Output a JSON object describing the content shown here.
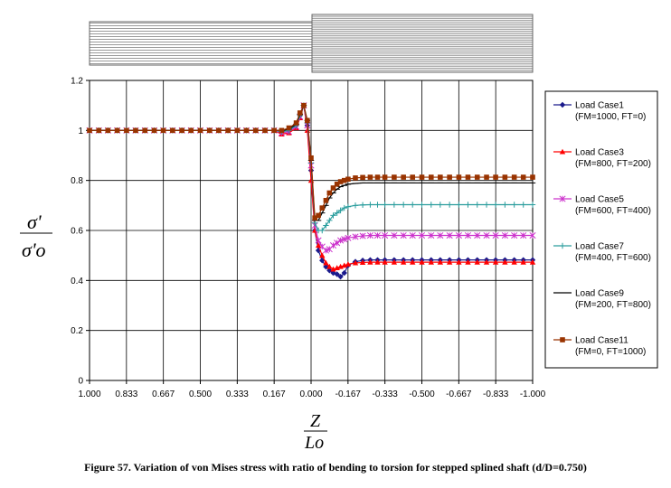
{
  "chart_data": {
    "type": "line",
    "caption": "Figure 57.    Variation of von Mises stress with ratio of bending to torsion for stepped splined shaft (d/D=0.750)",
    "ylabel": {
      "num": "σ'",
      "den": "σ'o"
    },
    "xlabel": {
      "num": "Z",
      "den": "Lo"
    },
    "ylim": [
      0,
      1.2
    ],
    "xlim": [
      1.0,
      -1.0
    ],
    "yticks": [
      "0",
      "0.2",
      "0.4",
      "0.6",
      "0.8",
      "1",
      "1.2"
    ],
    "xticks": [
      "1.000",
      "0.833",
      "0.667",
      "0.500",
      "0.333",
      "0.167",
      "0.000",
      "-0.167",
      "-0.333",
      "-0.500",
      "-0.667",
      "-0.833",
      "-1.000"
    ],
    "grid": true,
    "legend_position": "right",
    "x": [
      1.0,
      0.958,
      0.917,
      0.875,
      0.833,
      0.792,
      0.75,
      0.708,
      0.667,
      0.625,
      0.583,
      0.542,
      0.5,
      0.458,
      0.417,
      0.375,
      0.333,
      0.292,
      0.25,
      0.208,
      0.167,
      0.133,
      0.1,
      0.067,
      0.05,
      0.033,
      0.017,
      0.0,
      -0.017,
      -0.033,
      -0.05,
      -0.067,
      -0.083,
      -0.1,
      -0.117,
      -0.133,
      -0.15,
      -0.167,
      -0.2,
      -0.233,
      -0.267,
      -0.3,
      -0.333,
      -0.375,
      -0.417,
      -0.458,
      -0.5,
      -0.542,
      -0.583,
      -0.625,
      -0.667,
      -0.708,
      -0.75,
      -0.792,
      -0.833,
      -0.875,
      -0.917,
      -0.958,
      -1.0
    ],
    "series": [
      {
        "name": "Load Case1",
        "sub": "(FM=1000, FT=0)",
        "color": "#1a1a8c",
        "marker": "diamond",
        "values": [
          1,
          1,
          1,
          1,
          1,
          1,
          1,
          1,
          1,
          1,
          1,
          1,
          1,
          1,
          1,
          1,
          1,
          1,
          1,
          1,
          1,
          0.995,
          1.0,
          1.02,
          1.06,
          1.1,
          1.02,
          0.84,
          0.6,
          0.52,
          0.48,
          0.455,
          0.44,
          0.43,
          0.425,
          0.415,
          0.43,
          0.46,
          0.475,
          0.48,
          0.482,
          0.482,
          0.482,
          0.482,
          0.482,
          0.482,
          0.482,
          0.482,
          0.482,
          0.482,
          0.482,
          0.482,
          0.482,
          0.482,
          0.482,
          0.482,
          0.482,
          0.482,
          0.482
        ]
      },
      {
        "name": "Load Case3",
        "sub": "(FM=800, FT=200)",
        "color": "#ff0000",
        "marker": "triangle",
        "values": [
          1,
          1,
          1,
          1,
          1,
          1,
          1,
          1,
          1,
          1,
          1,
          1,
          1,
          1,
          1,
          1,
          1,
          1,
          1,
          1,
          1,
          0.985,
          0.99,
          1.01,
          1.05,
          1.1,
          1.0,
          0.8,
          0.6,
          0.54,
          0.5,
          0.47,
          0.455,
          0.445,
          0.45,
          0.455,
          0.46,
          0.465,
          0.47,
          0.472,
          0.473,
          0.473,
          0.473,
          0.473,
          0.473,
          0.473,
          0.473,
          0.473,
          0.473,
          0.473,
          0.473,
          0.473,
          0.473,
          0.473,
          0.473,
          0.473,
          0.473,
          0.473,
          0.473
        ]
      },
      {
        "name": "Load Case5",
        "sub": "(FM=600, FT=400)",
        "color": "#cc33cc",
        "marker": "star",
        "values": [
          1,
          1,
          1,
          1,
          1,
          1,
          1,
          1,
          1,
          1,
          1,
          1,
          1,
          1,
          1,
          1,
          1,
          1,
          1,
          1,
          1,
          0.99,
          0.995,
          1.015,
          1.055,
          1.1,
          1.02,
          0.86,
          0.62,
          0.56,
          0.535,
          0.52,
          0.525,
          0.54,
          0.55,
          0.56,
          0.565,
          0.57,
          0.575,
          0.578,
          0.58,
          0.58,
          0.58,
          0.58,
          0.58,
          0.58,
          0.58,
          0.58,
          0.58,
          0.58,
          0.58,
          0.58,
          0.58,
          0.58,
          0.58,
          0.58,
          0.58,
          0.58,
          0.58
        ]
      },
      {
        "name": "Load Case7",
        "sub": "(FM=400, FT=600)",
        "color": "#2a9d9d",
        "marker": "plus",
        "values": [
          1,
          1,
          1,
          1,
          1,
          1,
          1,
          1,
          1,
          1,
          1,
          1,
          1,
          1,
          1,
          1,
          1,
          1,
          1,
          1,
          1,
          0.995,
          1.0,
          1.02,
          1.06,
          1.1,
          1.03,
          0.87,
          0.63,
          0.6,
          0.6,
          0.62,
          0.64,
          0.66,
          0.67,
          0.68,
          0.69,
          0.695,
          0.7,
          0.702,
          0.703,
          0.703,
          0.703,
          0.703,
          0.703,
          0.703,
          0.703,
          0.703,
          0.703,
          0.703,
          0.703,
          0.703,
          0.703,
          0.703,
          0.703,
          0.703,
          0.703,
          0.703,
          0.703
        ]
      },
      {
        "name": "Load Case9",
        "sub": "(FM=200, FT=800)",
        "color": "#000000",
        "marker": "dash",
        "values": [
          1,
          1,
          1,
          1,
          1,
          1,
          1,
          1,
          1,
          1,
          1,
          1,
          1,
          1,
          1,
          1,
          1,
          1,
          1,
          1,
          1,
          1.0,
          1.005,
          1.025,
          1.065,
          1.1,
          1.04,
          0.88,
          0.64,
          0.64,
          0.67,
          0.7,
          0.73,
          0.75,
          0.765,
          0.775,
          0.78,
          0.785,
          0.788,
          0.79,
          0.79,
          0.79,
          0.79,
          0.79,
          0.79,
          0.79,
          0.79,
          0.79,
          0.79,
          0.79,
          0.79,
          0.79,
          0.79,
          0.79,
          0.79,
          0.79,
          0.79,
          0.79,
          0.79
        ]
      },
      {
        "name": "Load Case11",
        "sub": "(FM=0, FT=1000)",
        "color": "#993300",
        "marker": "square",
        "values": [
          1,
          1,
          1,
          1,
          1,
          1,
          1,
          1,
          1,
          1,
          1,
          1,
          1,
          1,
          1,
          1,
          1,
          1,
          1,
          1,
          1,
          1.0,
          1.01,
          1.03,
          1.07,
          1.1,
          1.04,
          0.89,
          0.65,
          0.66,
          0.69,
          0.72,
          0.75,
          0.77,
          0.785,
          0.795,
          0.8,
          0.805,
          0.81,
          0.812,
          0.813,
          0.813,
          0.813,
          0.813,
          0.813,
          0.813,
          0.813,
          0.813,
          0.813,
          0.813,
          0.813,
          0.813,
          0.813,
          0.813,
          0.813,
          0.813,
          0.813,
          0.813,
          0.813
        ]
      }
    ]
  }
}
